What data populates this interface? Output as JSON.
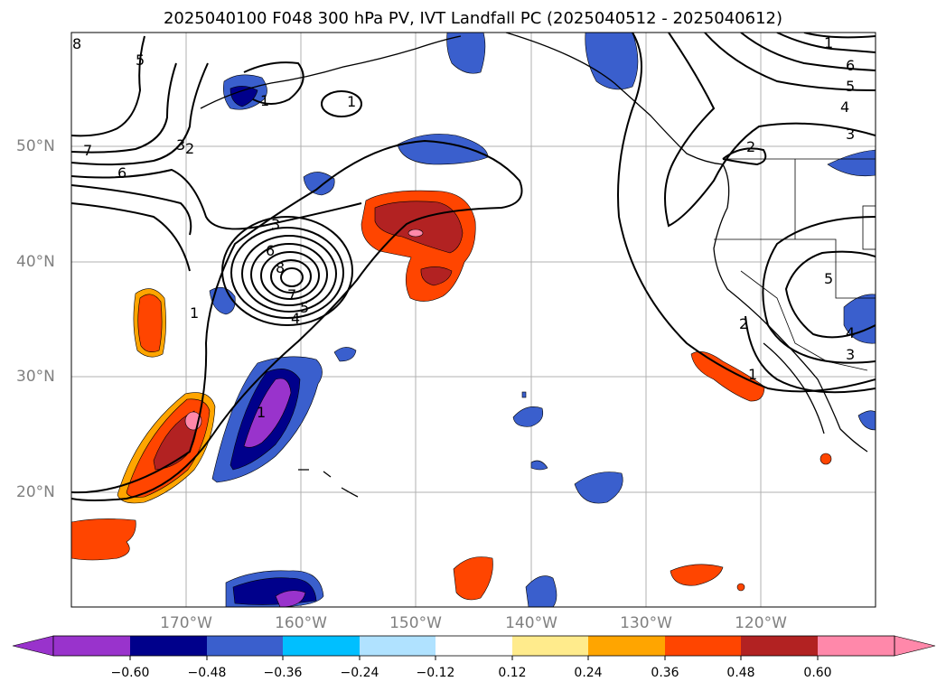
{
  "title": "2025040100 F048 300 hPa PV, IVT Landfall PC (2025040512 - 2025040612)",
  "lat_labels": [
    "50°N",
    "40°N",
    "30°N",
    "20°N"
  ],
  "lon_labels": [
    "170°W",
    "160°W",
    "150°W",
    "140°W",
    "130°W",
    "120°W"
  ],
  "colorbar": {
    "ticks": [
      "−0.60",
      "−0.48",
      "−0.36",
      "−0.24",
      "−0.12",
      "0.12",
      "0.24",
      "0.36",
      "0.48",
      "0.60"
    ],
    "colors": [
      "#9933cc",
      "#00008b",
      "#3a5fcd",
      "#00bfff",
      "#b0e2ff",
      "#ffffff",
      "#ffeb8c",
      "#ffa500",
      "#ff4500",
      "#b22222",
      "#ff88aa"
    ]
  },
  "contour_labels": {
    "l1": "1",
    "l2": "1",
    "l3": "1",
    "l4": "1",
    "l5": "1",
    "l6": "1",
    "l7": "2",
    "l8": "2",
    "l9": "2",
    "l10": "3",
    "l11": "3",
    "l12": "3",
    "l13": "3",
    "l14": "4",
    "l15": "4",
    "l16": "4",
    "l17": "5",
    "l18": "5",
    "l19": "5",
    "l20": "5",
    "l21": "6",
    "l22": "6",
    "l23": "6",
    "l24": "7",
    "l25": "7",
    "l26": "8",
    "l27": "8"
  }
}
